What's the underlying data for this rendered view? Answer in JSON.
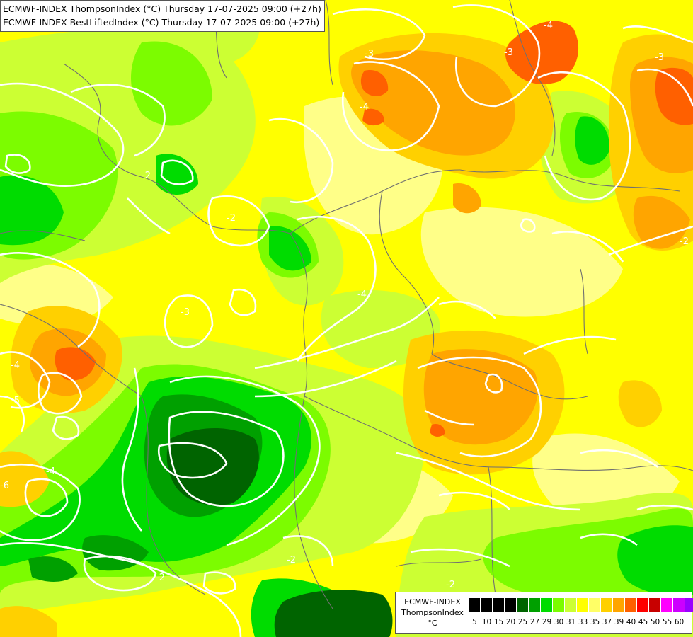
{
  "title": {
    "line1": "ECMWF-INDEX ThompsonIndex (°C) Thursday 17-07-2025 09:00 (+27h)",
    "line2": "ECMWF-INDEX BestLiftedIndex (°C) Thursday 17-07-2025 09:00 (+27h)"
  },
  "legend": {
    "label_model": "ECMWF-INDEX",
    "label_field": "ThompsonIndex",
    "label_unit": "°C",
    "ticks": [
      "5",
      "10",
      "15",
      "20",
      "25",
      "27",
      "29",
      "30",
      "31",
      "33",
      "35",
      "37",
      "39",
      "40",
      "45",
      "50",
      "55",
      "60"
    ],
    "colors": [
      "#000000",
      "#000000",
      "#000000",
      "#000000",
      "#006400",
      "#00a000",
      "#00dc00",
      "#7cfc00",
      "#ccff33",
      "#ffff00",
      "#ffff66",
      "#ffd000",
      "#ffa500",
      "#ff6000",
      "#ff0000",
      "#c80000",
      "#ff00ff",
      "#cc00ff",
      "#9900ff",
      "#6600ff",
      "#0000ff"
    ]
  },
  "map_colors": {
    "dark_green": "#006400",
    "mid_green": "#00a000",
    "green": "#00dc00",
    "lime": "#7cfc00",
    "yellow_green": "#ccff33",
    "yellow": "#ffff00",
    "light_yellow": "#ffff88",
    "gold": "#ffd000",
    "orange": "#ffa500",
    "orange_red": "#ff6000",
    "contour": "#ffffff",
    "border": "#707070"
  },
  "contour_labels": [
    "-4",
    "-3",
    "-4",
    "-3",
    "-2",
    "-4",
    "-3",
    "-4",
    "-2",
    "-5",
    "-6",
    "-4",
    "-2",
    "-2",
    "-2",
    "-3",
    "-2"
  ]
}
